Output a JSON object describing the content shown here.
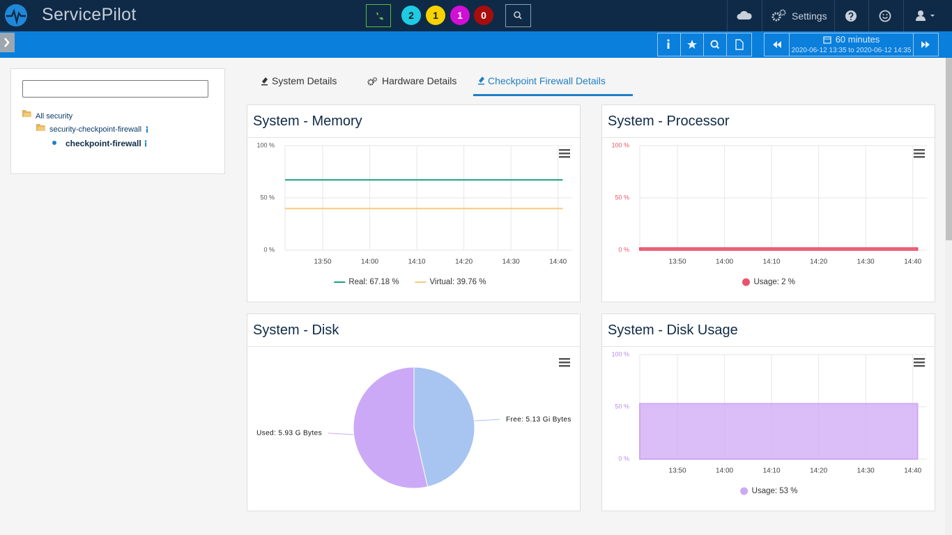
{
  "header": {
    "brand": "ServicePilot",
    "badges": [
      {
        "count": 2,
        "color": "#1fcbe3",
        "text_color": "#1a1a1a"
      },
      {
        "count": 1,
        "color": "#f5d200",
        "text_color": "#1a1a1a"
      },
      {
        "count": 1,
        "color": "#d20fd6",
        "text_color": "#ffffff"
      },
      {
        "count": 0,
        "color": "#a80d0d",
        "text_color": "#ffffff"
      }
    ],
    "settings": "Settings"
  },
  "toolbar": {
    "period": "60 minutes",
    "range": "2020-06-12 13:35 to 2020-06-12 14:35"
  },
  "tree": {
    "items": [
      "All security",
      "security-checkpoint-firewall",
      "checkpoint-firewall"
    ]
  },
  "tabs": {
    "items": [
      "System Details",
      "Hardware Details",
      "Checkpoint Firewall Details"
    ],
    "active": 2
  },
  "panels": [
    {
      "title": "System - Memory",
      "chart": {
        "type": "line",
        "x": [
          "13:42",
          "14:41"
        ],
        "xlim": [
          "13:42",
          "14:43"
        ],
        "xticks": [
          "13:50",
          "14:00",
          "14:10",
          "14:20",
          "14:30",
          "14:40"
        ],
        "ylim": [
          0,
          100
        ],
        "yticks": [
          {
            "value": 0,
            "label": "0 %"
          },
          {
            "value": 50,
            "label": "50 %"
          },
          {
            "value": 100,
            "label": "100 %"
          }
        ],
        "tick_color": "#555555",
        "series": [
          {
            "name": "Real: 67.18 %",
            "color": "#1a9e85",
            "values": [
              67.18,
              67.18
            ]
          },
          {
            "name": "Virtual: 39.76 %",
            "color": "#f5c97a",
            "values": [
              39.76,
              39.76
            ]
          }
        ]
      }
    },
    {
      "title": "System - Processor",
      "chart": {
        "type": "area",
        "x": [
          "13:42",
          "14:41"
        ],
        "xlim": [
          "13:42",
          "14:43"
        ],
        "xticks": [
          "13:50",
          "14:00",
          "14:10",
          "14:20",
          "14:30",
          "14:40"
        ],
        "ylim": [
          0,
          100
        ],
        "yticks": [
          {
            "value": 0,
            "label": "0 %"
          },
          {
            "value": 50,
            "label": "50 %"
          },
          {
            "value": 100,
            "label": "100 %"
          }
        ],
        "tick_color": "#e8546b",
        "series": [
          {
            "name": "Usage: 2 %",
            "color": "#e8546b",
            "values": [
              2,
              2
            ]
          }
        ]
      }
    },
    {
      "title": "System - Disk",
      "chart": {
        "type": "pie",
        "values": [
          5.13,
          5.93
        ],
        "value_labels": [
          "Free: 5.13 Gi Bytes",
          "Used: 5.93 G Bytes"
        ],
        "colors": [
          "#a7c5f0",
          "#cba9f7"
        ]
      }
    },
    {
      "title": "System - Disk Usage",
      "chart": {
        "type": "area",
        "x": [
          "13:42",
          "14:41"
        ],
        "xlim": [
          "13:42",
          "14:43"
        ],
        "xticks": [
          "13:50",
          "14:00",
          "14:10",
          "14:20",
          "14:30",
          "14:40"
        ],
        "ylim": [
          0,
          100
        ],
        "yticks": [
          {
            "value": 0,
            "label": "0 %"
          },
          {
            "value": 50,
            "label": "50 %"
          },
          {
            "value": 100,
            "label": "100 %"
          }
        ],
        "tick_color": "#b98be8",
        "series": [
          {
            "name": "Usage: 53 %",
            "color": "#cfa8f5",
            "values": [
              53,
              53
            ]
          }
        ]
      }
    }
  ]
}
